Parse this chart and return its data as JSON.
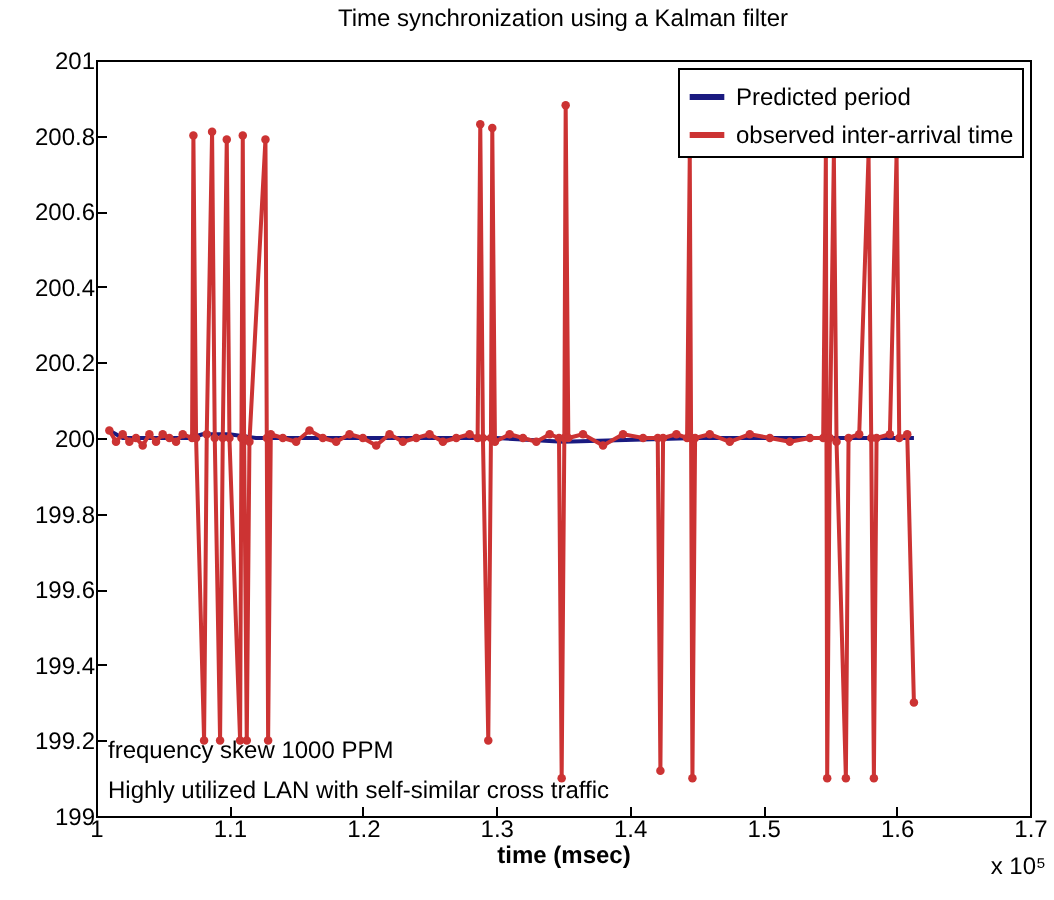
{
  "chart_data": {
    "type": "line",
    "title": "Time synchronization using a Kalman filter",
    "xlabel": "time (msec)",
    "annotations": [
      "frequency skew 1000 PPM",
      "Highly utilized LAN with self-similar cross traffic",
      "x 10⁵"
    ],
    "xlim": [
      1,
      1.7
    ],
    "xticks": [
      1,
      1.1,
      1.2,
      1.3,
      1.4,
      1.5,
      1.6,
      1.7
    ],
    "ylim": [
      199,
      201
    ],
    "yticks": [
      199,
      199.2,
      199.4,
      199.6,
      199.8,
      200,
      200.2,
      200.4,
      200.6,
      200.8,
      201
    ],
    "grid": false,
    "legend": "top right",
    "series": [
      {
        "name": "Predicted period",
        "color": "#1a1a80",
        "marker": "none",
        "x": [
          1.01,
          1.02,
          1.07,
          1.08,
          1.1,
          1.12,
          1.3,
          1.35,
          1.45,
          1.613
        ],
        "values": [
          200.02,
          200.0,
          200.0,
          200.01,
          200.01,
          200.0,
          200.0,
          199.99,
          200.0,
          200.0
        ]
      },
      {
        "name": "observed inter-arrival time",
        "color": "#cc3333",
        "marker": "circle",
        "x": [
          1.01,
          1.015,
          1.02,
          1.025,
          1.03,
          1.035,
          1.04,
          1.045,
          1.05,
          1.055,
          1.06,
          1.065,
          1.072,
          1.073,
          1.075,
          1.081,
          1.083,
          1.087,
          1.089,
          1.093,
          1.095,
          1.098,
          1.1,
          1.108,
          1.109,
          1.11,
          1.111,
          1.113,
          1.115,
          1.127,
          1.128,
          1.129,
          1.131,
          1.14,
          1.15,
          1.16,
          1.17,
          1.18,
          1.19,
          1.2,
          1.21,
          1.22,
          1.23,
          1.24,
          1.25,
          1.26,
          1.27,
          1.28,
          1.286,
          1.288,
          1.29,
          1.294,
          1.296,
          1.297,
          1.299,
          1.31,
          1.32,
          1.33,
          1.34,
          1.347,
          1.349,
          1.351,
          1.352,
          1.354,
          1.365,
          1.38,
          1.395,
          1.41,
          1.421,
          1.423,
          1.425,
          1.435,
          1.443,
          1.445,
          1.446,
          1.447,
          1.449,
          1.46,
          1.475,
          1.49,
          1.505,
          1.52,
          1.535,
          1.545,
          1.547,
          1.548,
          1.55,
          1.553,
          1.555,
          1.562,
          1.564,
          1.572,
          1.579,
          1.581,
          1.583,
          1.585,
          1.595,
          1.6,
          1.602,
          1.608,
          1.613
        ],
        "values": [
          200.02,
          199.99,
          200.01,
          199.99,
          200.0,
          199.98,
          200.01,
          199.99,
          200.01,
          200.0,
          199.99,
          200.01,
          200.0,
          200.8,
          200.0,
          199.2,
          200.01,
          200.81,
          200.0,
          199.2,
          200.0,
          200.79,
          200.0,
          199.2,
          200.0,
          200.8,
          200.0,
          199.2,
          199.99,
          200.79,
          200.0,
          199.2,
          200.01,
          200.0,
          199.99,
          200.02,
          200.0,
          199.99,
          200.01,
          200.0,
          199.98,
          200.01,
          199.99,
          200.0,
          200.01,
          199.99,
          200.0,
          200.01,
          200.0,
          200.83,
          200.0,
          199.2,
          200.0,
          200.82,
          199.99,
          200.01,
          200.0,
          199.99,
          200.01,
          200.0,
          199.1,
          200.0,
          200.88,
          200.0,
          200.01,
          199.98,
          200.01,
          200.0,
          200.0,
          199.12,
          200.0,
          200.01,
          200.0,
          200.75,
          200.0,
          199.1,
          200.0,
          200.01,
          199.99,
          200.01,
          200.0,
          199.99,
          200.0,
          200.0,
          200.75,
          199.1,
          200.0,
          200.75,
          199.99,
          199.1,
          200.0,
          200.01,
          200.75,
          200.0,
          199.1,
          200.0,
          200.01,
          200.75,
          200.0,
          200.01,
          199.3
        ]
      }
    ]
  }
}
